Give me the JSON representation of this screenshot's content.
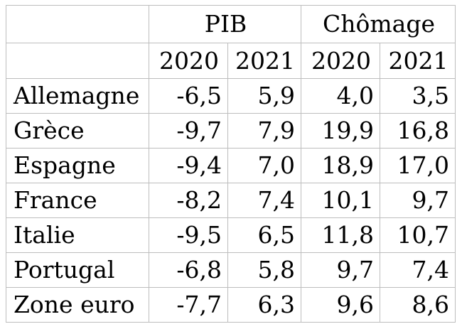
{
  "table": {
    "groups": [
      {
        "label": "PIB"
      },
      {
        "label": "Chômage"
      }
    ],
    "years": [
      "2020",
      "2021",
      "2020",
      "2021"
    ],
    "rows": [
      {
        "label": "Allemagne",
        "values": [
          "-6,5",
          "5,9",
          "4,0",
          "3,5"
        ]
      },
      {
        "label": "Grèce",
        "values": [
          "-9,7",
          "7,9",
          "19,9",
          "16,8"
        ]
      },
      {
        "label": "Espagne",
        "values": [
          "-9,4",
          "7,0",
          "18,9",
          "17,0"
        ]
      },
      {
        "label": "France",
        "values": [
          "-8,2",
          "7,4",
          "10,1",
          "9,7"
        ]
      },
      {
        "label": "Italie",
        "values": [
          "-9,5",
          "6,5",
          "11,8",
          "10,7"
        ]
      },
      {
        "label": "Portugal",
        "values": [
          "-6,8",
          "5,8",
          "9,7",
          "7,4"
        ]
      },
      {
        "label": "Zone euro",
        "values": [
          "-7,7",
          "6,3",
          "9,6",
          "8,6"
        ]
      }
    ]
  }
}
